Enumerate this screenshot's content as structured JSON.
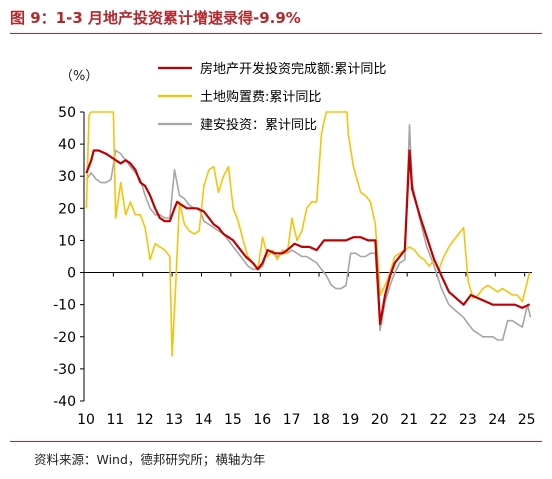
{
  "title": "图 9：1-3 月地产投资累计增速录得-9.9%",
  "source": "资料来源：Wind，德邦研究所；横轴为年",
  "colors": {
    "title": "#b3282d",
    "series1": "#c00000",
    "series2": "#f5c40a",
    "series3": "#a6a6a6"
  },
  "chart_data": {
    "type": "line",
    "ylabel": "（%）",
    "ylim": [
      -40,
      50
    ],
    "yticks": [
      50,
      40,
      30,
      20,
      10,
      0,
      -10,
      -20,
      -30,
      -40
    ],
    "xlim": [
      2010.0,
      2025.25
    ],
    "xticks": [
      "10",
      "11",
      "12",
      "13",
      "14",
      "15",
      "16",
      "17",
      "18",
      "19",
      "20",
      "21",
      "22",
      "23",
      "24",
      "25"
    ],
    "grid": false,
    "legend_position": "top",
    "series": [
      {
        "name": "房地产开发投资完成额:累计同比",
        "color": "#c00000",
        "points": [
          [
            2010.08,
            31
          ],
          [
            2010.25,
            35
          ],
          [
            2010.33,
            38
          ],
          [
            2010.5,
            38
          ],
          [
            2010.75,
            37
          ],
          [
            2010.92,
            36
          ],
          [
            2011.08,
            35
          ],
          [
            2011.25,
            34
          ],
          [
            2011.42,
            35
          ],
          [
            2011.58,
            34
          ],
          [
            2011.75,
            32
          ],
          [
            2011.92,
            28
          ],
          [
            2012.08,
            27
          ],
          [
            2012.25,
            24
          ],
          [
            2012.42,
            20
          ],
          [
            2012.58,
            17
          ],
          [
            2012.75,
            16
          ],
          [
            2012.92,
            16
          ],
          [
            2013.08,
            20
          ],
          [
            2013.17,
            22
          ],
          [
            2013.33,
            21
          ],
          [
            2013.5,
            20
          ],
          [
            2013.67,
            20
          ],
          [
            2013.83,
            20
          ],
          [
            2014.08,
            19
          ],
          [
            2014.25,
            17
          ],
          [
            2014.42,
            15
          ],
          [
            2014.58,
            14
          ],
          [
            2014.75,
            12
          ],
          [
            2014.92,
            11
          ],
          [
            2015.08,
            10
          ],
          [
            2015.25,
            8
          ],
          [
            2015.5,
            5
          ],
          [
            2015.75,
            3
          ],
          [
            2015.92,
            1
          ],
          [
            2016.08,
            3
          ],
          [
            2016.25,
            7
          ],
          [
            2016.5,
            6
          ],
          [
            2016.75,
            6
          ],
          [
            2016.92,
            7
          ],
          [
            2017.17,
            9
          ],
          [
            2017.42,
            8
          ],
          [
            2017.67,
            8
          ],
          [
            2017.92,
            7
          ],
          [
            2018.17,
            10
          ],
          [
            2018.42,
            10
          ],
          [
            2018.67,
            10
          ],
          [
            2018.92,
            10
          ],
          [
            2019.17,
            11
          ],
          [
            2019.42,
            11
          ],
          [
            2019.67,
            10
          ],
          [
            2019.92,
            10
          ],
          [
            2020.08,
            -16
          ],
          [
            2020.25,
            -7
          ],
          [
            2020.42,
            -1
          ],
          [
            2020.58,
            3
          ],
          [
            2020.75,
            5
          ],
          [
            2020.92,
            7
          ],
          [
            2021.08,
            38
          ],
          [
            2021.17,
            26
          ],
          [
            2021.42,
            18
          ],
          [
            2021.67,
            11
          ],
          [
            2021.92,
            4
          ],
          [
            2022.17,
            -1
          ],
          [
            2022.42,
            -6
          ],
          [
            2022.67,
            -8
          ],
          [
            2022.92,
            -10
          ],
          [
            2023.17,
            -7
          ],
          [
            2023.42,
            -8
          ],
          [
            2023.67,
            -9
          ],
          [
            2023.92,
            -10
          ],
          [
            2024.17,
            -10
          ],
          [
            2024.42,
            -10
          ],
          [
            2024.67,
            -10
          ],
          [
            2024.92,
            -11
          ],
          [
            2025.17,
            -9.9
          ]
        ]
      },
      {
        "name": "土地购置费:累计同比",
        "color": "#f5c40a",
        "points": [
          [
            2010.08,
            20
          ],
          [
            2010.17,
            49
          ],
          [
            2010.25,
            50
          ],
          [
            2010.35,
            50
          ],
          [
            2011.0,
            50
          ],
          [
            2011.08,
            17
          ],
          [
            2011.25,
            28
          ],
          [
            2011.42,
            18
          ],
          [
            2011.58,
            22
          ],
          [
            2011.75,
            18
          ],
          [
            2011.92,
            18
          ],
          [
            2012.08,
            14
          ],
          [
            2012.25,
            4
          ],
          [
            2012.42,
            9
          ],
          [
            2012.58,
            8
          ],
          [
            2012.75,
            7
          ],
          [
            2012.92,
            5
          ],
          [
            2013.0,
            -26
          ],
          [
            2013.1,
            -8
          ],
          [
            2013.25,
            22
          ],
          [
            2013.42,
            15
          ],
          [
            2013.58,
            13
          ],
          [
            2013.75,
            12
          ],
          [
            2013.92,
            13
          ],
          [
            2014.08,
            27
          ],
          [
            2014.25,
            32
          ],
          [
            2014.42,
            33
          ],
          [
            2014.58,
            25
          ],
          [
            2014.75,
            30
          ],
          [
            2014.92,
            33
          ],
          [
            2015.08,
            20
          ],
          [
            2015.25,
            16
          ],
          [
            2015.42,
            10
          ],
          [
            2015.58,
            5
          ],
          [
            2015.75,
            3
          ],
          [
            2015.92,
            1
          ],
          [
            2016.08,
            11
          ],
          [
            2016.25,
            5
          ],
          [
            2016.42,
            7
          ],
          [
            2016.58,
            4
          ],
          [
            2016.75,
            7
          ],
          [
            2016.92,
            6
          ],
          [
            2017.08,
            17
          ],
          [
            2017.25,
            10
          ],
          [
            2017.42,
            13
          ],
          [
            2017.58,
            20
          ],
          [
            2017.75,
            22
          ],
          [
            2017.92,
            22
          ],
          [
            2018.08,
            43
          ],
          [
            2018.17,
            47
          ],
          [
            2018.25,
            50
          ],
          [
            2018.95,
            50
          ],
          [
            2019.0,
            43
          ],
          [
            2019.17,
            33
          ],
          [
            2019.42,
            25
          ],
          [
            2019.58,
            24
          ],
          [
            2019.75,
            22
          ],
          [
            2019.92,
            15
          ],
          [
            2020.08,
            -7
          ],
          [
            2020.25,
            -4
          ],
          [
            2020.42,
            0
          ],
          [
            2020.58,
            5
          ],
          [
            2020.75,
            6
          ],
          [
            2020.92,
            7
          ],
          [
            2021.08,
            8
          ],
          [
            2021.25,
            7
          ],
          [
            2021.42,
            5
          ],
          [
            2021.58,
            4
          ],
          [
            2021.75,
            2
          ],
          [
            2021.92,
            4
          ],
          [
            2022.08,
            1
          ],
          [
            2022.25,
            5
          ],
          [
            2022.42,
            8
          ],
          [
            2022.58,
            10
          ],
          [
            2022.75,
            12
          ],
          [
            2022.92,
            14
          ],
          [
            2023.08,
            -3
          ],
          [
            2023.25,
            -8
          ],
          [
            2023.42,
            -7
          ],
          [
            2023.58,
            -5
          ],
          [
            2023.75,
            -4
          ],
          [
            2023.92,
            -5
          ],
          [
            2024.08,
            -6
          ],
          [
            2024.25,
            -5
          ],
          [
            2024.42,
            -6
          ],
          [
            2024.58,
            -7
          ],
          [
            2024.75,
            -7
          ],
          [
            2024.92,
            -9
          ],
          [
            2025.17,
            0
          ]
        ]
      },
      {
        "name": "建安投资：累计同比",
        "color": "#a6a6a6",
        "points": [
          [
            2010.08,
            29
          ],
          [
            2010.25,
            31
          ],
          [
            2010.42,
            29
          ],
          [
            2010.58,
            28
          ],
          [
            2010.75,
            28
          ],
          [
            2010.92,
            29
          ],
          [
            2011.08,
            38
          ],
          [
            2011.25,
            37
          ],
          [
            2011.42,
            35
          ],
          [
            2011.58,
            33
          ],
          [
            2011.75,
            31
          ],
          [
            2011.92,
            29
          ],
          [
            2012.08,
            24
          ],
          [
            2012.25,
            20
          ],
          [
            2012.42,
            18
          ],
          [
            2012.58,
            18
          ],
          [
            2012.75,
            17
          ],
          [
            2012.92,
            17
          ],
          [
            2013.08,
            32
          ],
          [
            2013.25,
            24
          ],
          [
            2013.42,
            23
          ],
          [
            2013.58,
            21
          ],
          [
            2013.75,
            20
          ],
          [
            2013.92,
            20
          ],
          [
            2014.08,
            16
          ],
          [
            2014.25,
            15
          ],
          [
            2014.42,
            14
          ],
          [
            2014.58,
            13
          ],
          [
            2014.75,
            12
          ],
          [
            2014.92,
            10
          ],
          [
            2015.08,
            8
          ],
          [
            2015.25,
            6
          ],
          [
            2015.42,
            4
          ],
          [
            2015.58,
            2
          ],
          [
            2015.75,
            1
          ],
          [
            2015.92,
            1
          ],
          [
            2016.08,
            2
          ],
          [
            2016.25,
            7
          ],
          [
            2016.42,
            6
          ],
          [
            2016.58,
            5
          ],
          [
            2016.75,
            6
          ],
          [
            2016.92,
            6
          ],
          [
            2017.08,
            7
          ],
          [
            2017.25,
            6
          ],
          [
            2017.42,
            5
          ],
          [
            2017.58,
            5
          ],
          [
            2017.75,
            4
          ],
          [
            2017.92,
            3
          ],
          [
            2018.08,
            1
          ],
          [
            2018.25,
            -1
          ],
          [
            2018.42,
            -4
          ],
          [
            2018.58,
            -5
          ],
          [
            2018.75,
            -5
          ],
          [
            2018.92,
            -4
          ],
          [
            2019.08,
            6
          ],
          [
            2019.25,
            6
          ],
          [
            2019.42,
            5
          ],
          [
            2019.58,
            5
          ],
          [
            2019.75,
            6
          ],
          [
            2019.92,
            6
          ],
          [
            2020.08,
            -18
          ],
          [
            2020.25,
            -9
          ],
          [
            2020.42,
            -4
          ],
          [
            2020.58,
            0
          ],
          [
            2020.75,
            3
          ],
          [
            2020.92,
            4
          ],
          [
            2021.08,
            46
          ],
          [
            2021.17,
            28
          ],
          [
            2021.42,
            17
          ],
          [
            2021.67,
            8
          ],
          [
            2021.92,
            2
          ],
          [
            2022.17,
            -5
          ],
          [
            2022.42,
            -10
          ],
          [
            2022.67,
            -12
          ],
          [
            2022.92,
            -14
          ],
          [
            2023.08,
            -16
          ],
          [
            2023.25,
            -18
          ],
          [
            2023.42,
            -19
          ],
          [
            2023.58,
            -20
          ],
          [
            2023.75,
            -20
          ],
          [
            2023.92,
            -20
          ],
          [
            2024.08,
            -21
          ],
          [
            2024.25,
            -21
          ],
          [
            2024.42,
            -15
          ],
          [
            2024.58,
            -15
          ],
          [
            2024.75,
            -16
          ],
          [
            2024.92,
            -17
          ],
          [
            2025.1,
            -10
          ],
          [
            2025.2,
            -14
          ]
        ]
      }
    ]
  }
}
